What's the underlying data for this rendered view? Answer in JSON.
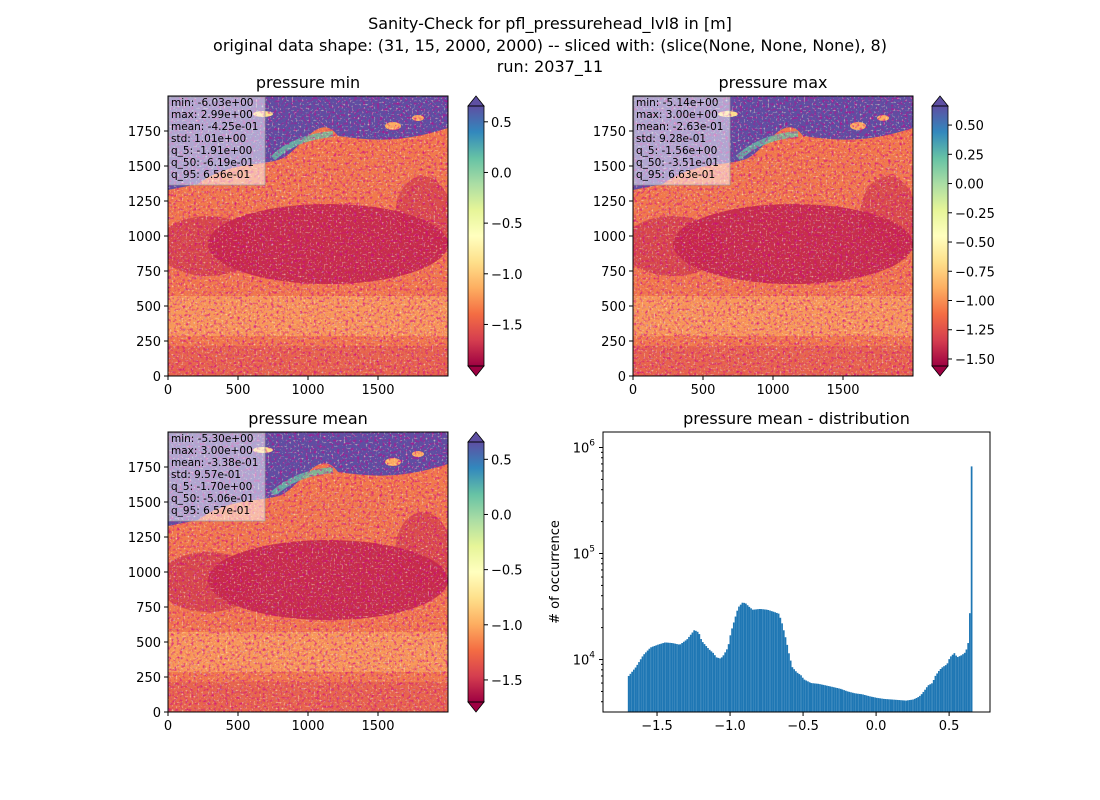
{
  "suptitle": [
    "Sanity-Check for pfl_pressurehead_lvl8 in [m]",
    "original data shape: (31, 15, 2000, 2000) -- sliced with: (slice(None, None, None), 8)",
    "run: 2037_11"
  ],
  "chart_data": [
    {
      "type": "heatmap",
      "title": "pressure min",
      "x_ticks": [
        "0",
        "500",
        "1000",
        "1500"
      ],
      "y_ticks": [
        "0",
        "250",
        "500",
        "750",
        "1000",
        "1250",
        "1500",
        "1750"
      ],
      "xlim": [
        0,
        2000
      ],
      "ylim": [
        0,
        2000
      ],
      "colormap": "Spectral",
      "colorbar": {
        "range": [
          -1.91,
          0.656
        ],
        "ticks": [
          "0.5",
          "0.0",
          "−0.5",
          "−1.0",
          "−1.5"
        ],
        "tick_values": [
          0.5,
          0.0,
          -0.5,
          -1.0,
          -1.5
        ],
        "extend": "both"
      },
      "stats": [
        "min: -6.03e+00",
        "max: 2.99e+00",
        "mean: -4.25e-01",
        "std: 1.01e+00",
        "q_5: -1.91e+00",
        "q_50: -6.19e-01",
        "q_95: 6.56e-01"
      ]
    },
    {
      "type": "heatmap",
      "title": "pressure max",
      "x_ticks": [
        "0",
        "500",
        "1000",
        "1500"
      ],
      "y_ticks": [
        "0",
        "250",
        "500",
        "750",
        "1000",
        "1250",
        "1500",
        "1750"
      ],
      "xlim": [
        0,
        2000
      ],
      "ylim": [
        0,
        2000
      ],
      "colormap": "Spectral",
      "colorbar": {
        "range": [
          -1.56,
          0.663
        ],
        "ticks": [
          "0.50",
          "0.25",
          "0.00",
          "−0.25",
          "−0.50",
          "−0.75",
          "−1.00",
          "−1.25",
          "−1.50"
        ],
        "tick_values": [
          0.5,
          0.25,
          0.0,
          -0.25,
          -0.5,
          -0.75,
          -1.0,
          -1.25,
          -1.5
        ],
        "extend": "both"
      },
      "stats": [
        "min: -5.14e+00",
        "max: 3.00e+00",
        "mean: -2.63e-01",
        "std: 9.28e-01",
        "q_5: -1.56e+00",
        "q_50: -3.51e-01",
        "q_95: 6.63e-01"
      ]
    },
    {
      "type": "heatmap",
      "title": "pressure mean",
      "x_ticks": [
        "0",
        "500",
        "1000",
        "1500"
      ],
      "y_ticks": [
        "0",
        "250",
        "500",
        "750",
        "1000",
        "1250",
        "1500",
        "1750"
      ],
      "xlim": [
        0,
        2000
      ],
      "ylim": [
        0,
        2000
      ],
      "colormap": "Spectral",
      "colorbar": {
        "range": [
          -1.7,
          0.657
        ],
        "ticks": [
          "0.5",
          "0.0",
          "−0.5",
          "−1.0",
          "−1.5"
        ],
        "tick_values": [
          0.5,
          0.0,
          -0.5,
          -1.0,
          -1.5
        ],
        "extend": "both"
      },
      "stats": [
        "min: -5.30e+00",
        "max: 3.00e+00",
        "mean: -3.38e-01",
        "std: 9.57e-01",
        "q_5: -1.70e+00",
        "q_50: -5.06e-01",
        "q_95: 6.57e-01"
      ]
    },
    {
      "type": "bar",
      "title": "pressure mean - distribution",
      "xlabel": "",
      "ylabel": "# of occurrence",
      "yscale": "log",
      "xlim": [
        -1.87,
        0.78
      ],
      "ylim": [
        3200,
        1400000
      ],
      "x_ticks": [
        "−1.5",
        "−1.0",
        "−0.5",
        "0.0",
        "0.5"
      ],
      "x_tick_values": [
        -1.5,
        -1.0,
        -0.5,
        0.0,
        0.5
      ],
      "y_ticks": [
        "10^4",
        "10^5",
        "10^6"
      ],
      "y_tick_values": [
        10000,
        100000,
        1000000
      ],
      "color": "#1f77b4",
      "bin_width": 0.0118,
      "x": [
        -1.7,
        -1.65,
        -1.6,
        -1.55,
        -1.5,
        -1.45,
        -1.4,
        -1.35,
        -1.3,
        -1.27,
        -1.25,
        -1.22,
        -1.2,
        -1.15,
        -1.12,
        -1.1,
        -1.07,
        -1.05,
        -1.02,
        -1.0,
        -0.97,
        -0.95,
        -0.92,
        -0.9,
        -0.87,
        -0.85,
        -0.8,
        -0.75,
        -0.7,
        -0.67,
        -0.65,
        -0.62,
        -0.6,
        -0.58,
        -0.55,
        -0.52,
        -0.5,
        -0.45,
        -0.4,
        -0.35,
        -0.3,
        -0.25,
        -0.2,
        -0.15,
        -0.1,
        -0.05,
        0.0,
        0.05,
        0.1,
        0.15,
        0.2,
        0.25,
        0.28,
        0.3,
        0.33,
        0.35,
        0.38,
        0.4,
        0.43,
        0.45,
        0.48,
        0.5,
        0.53,
        0.55,
        0.58,
        0.6,
        0.62,
        0.63,
        0.64,
        0.645,
        0.65,
        0.655,
        0.66
      ],
      "values": [
        7000,
        8500,
        11000,
        13000,
        13800,
        14500,
        14300,
        13800,
        15500,
        17500,
        19000,
        18000,
        15000,
        12500,
        11500,
        10500,
        10200,
        11000,
        13000,
        18000,
        25000,
        31000,
        34500,
        34000,
        31000,
        29500,
        30000,
        29500,
        28000,
        27000,
        22000,
        15000,
        11000,
        8500,
        7600,
        7100,
        6500,
        6000,
        5900,
        5700,
        5500,
        5300,
        5000,
        4800,
        4700,
        4500,
        4350,
        4250,
        4200,
        4150,
        4100,
        4200,
        4400,
        4600,
        5200,
        5700,
        6000,
        7000,
        8000,
        8500,
        9000,
        10500,
        11500,
        10500,
        11000,
        11500,
        13000,
        16000,
        37000,
        350000,
        950000,
        220000,
        0
      ]
    }
  ]
}
